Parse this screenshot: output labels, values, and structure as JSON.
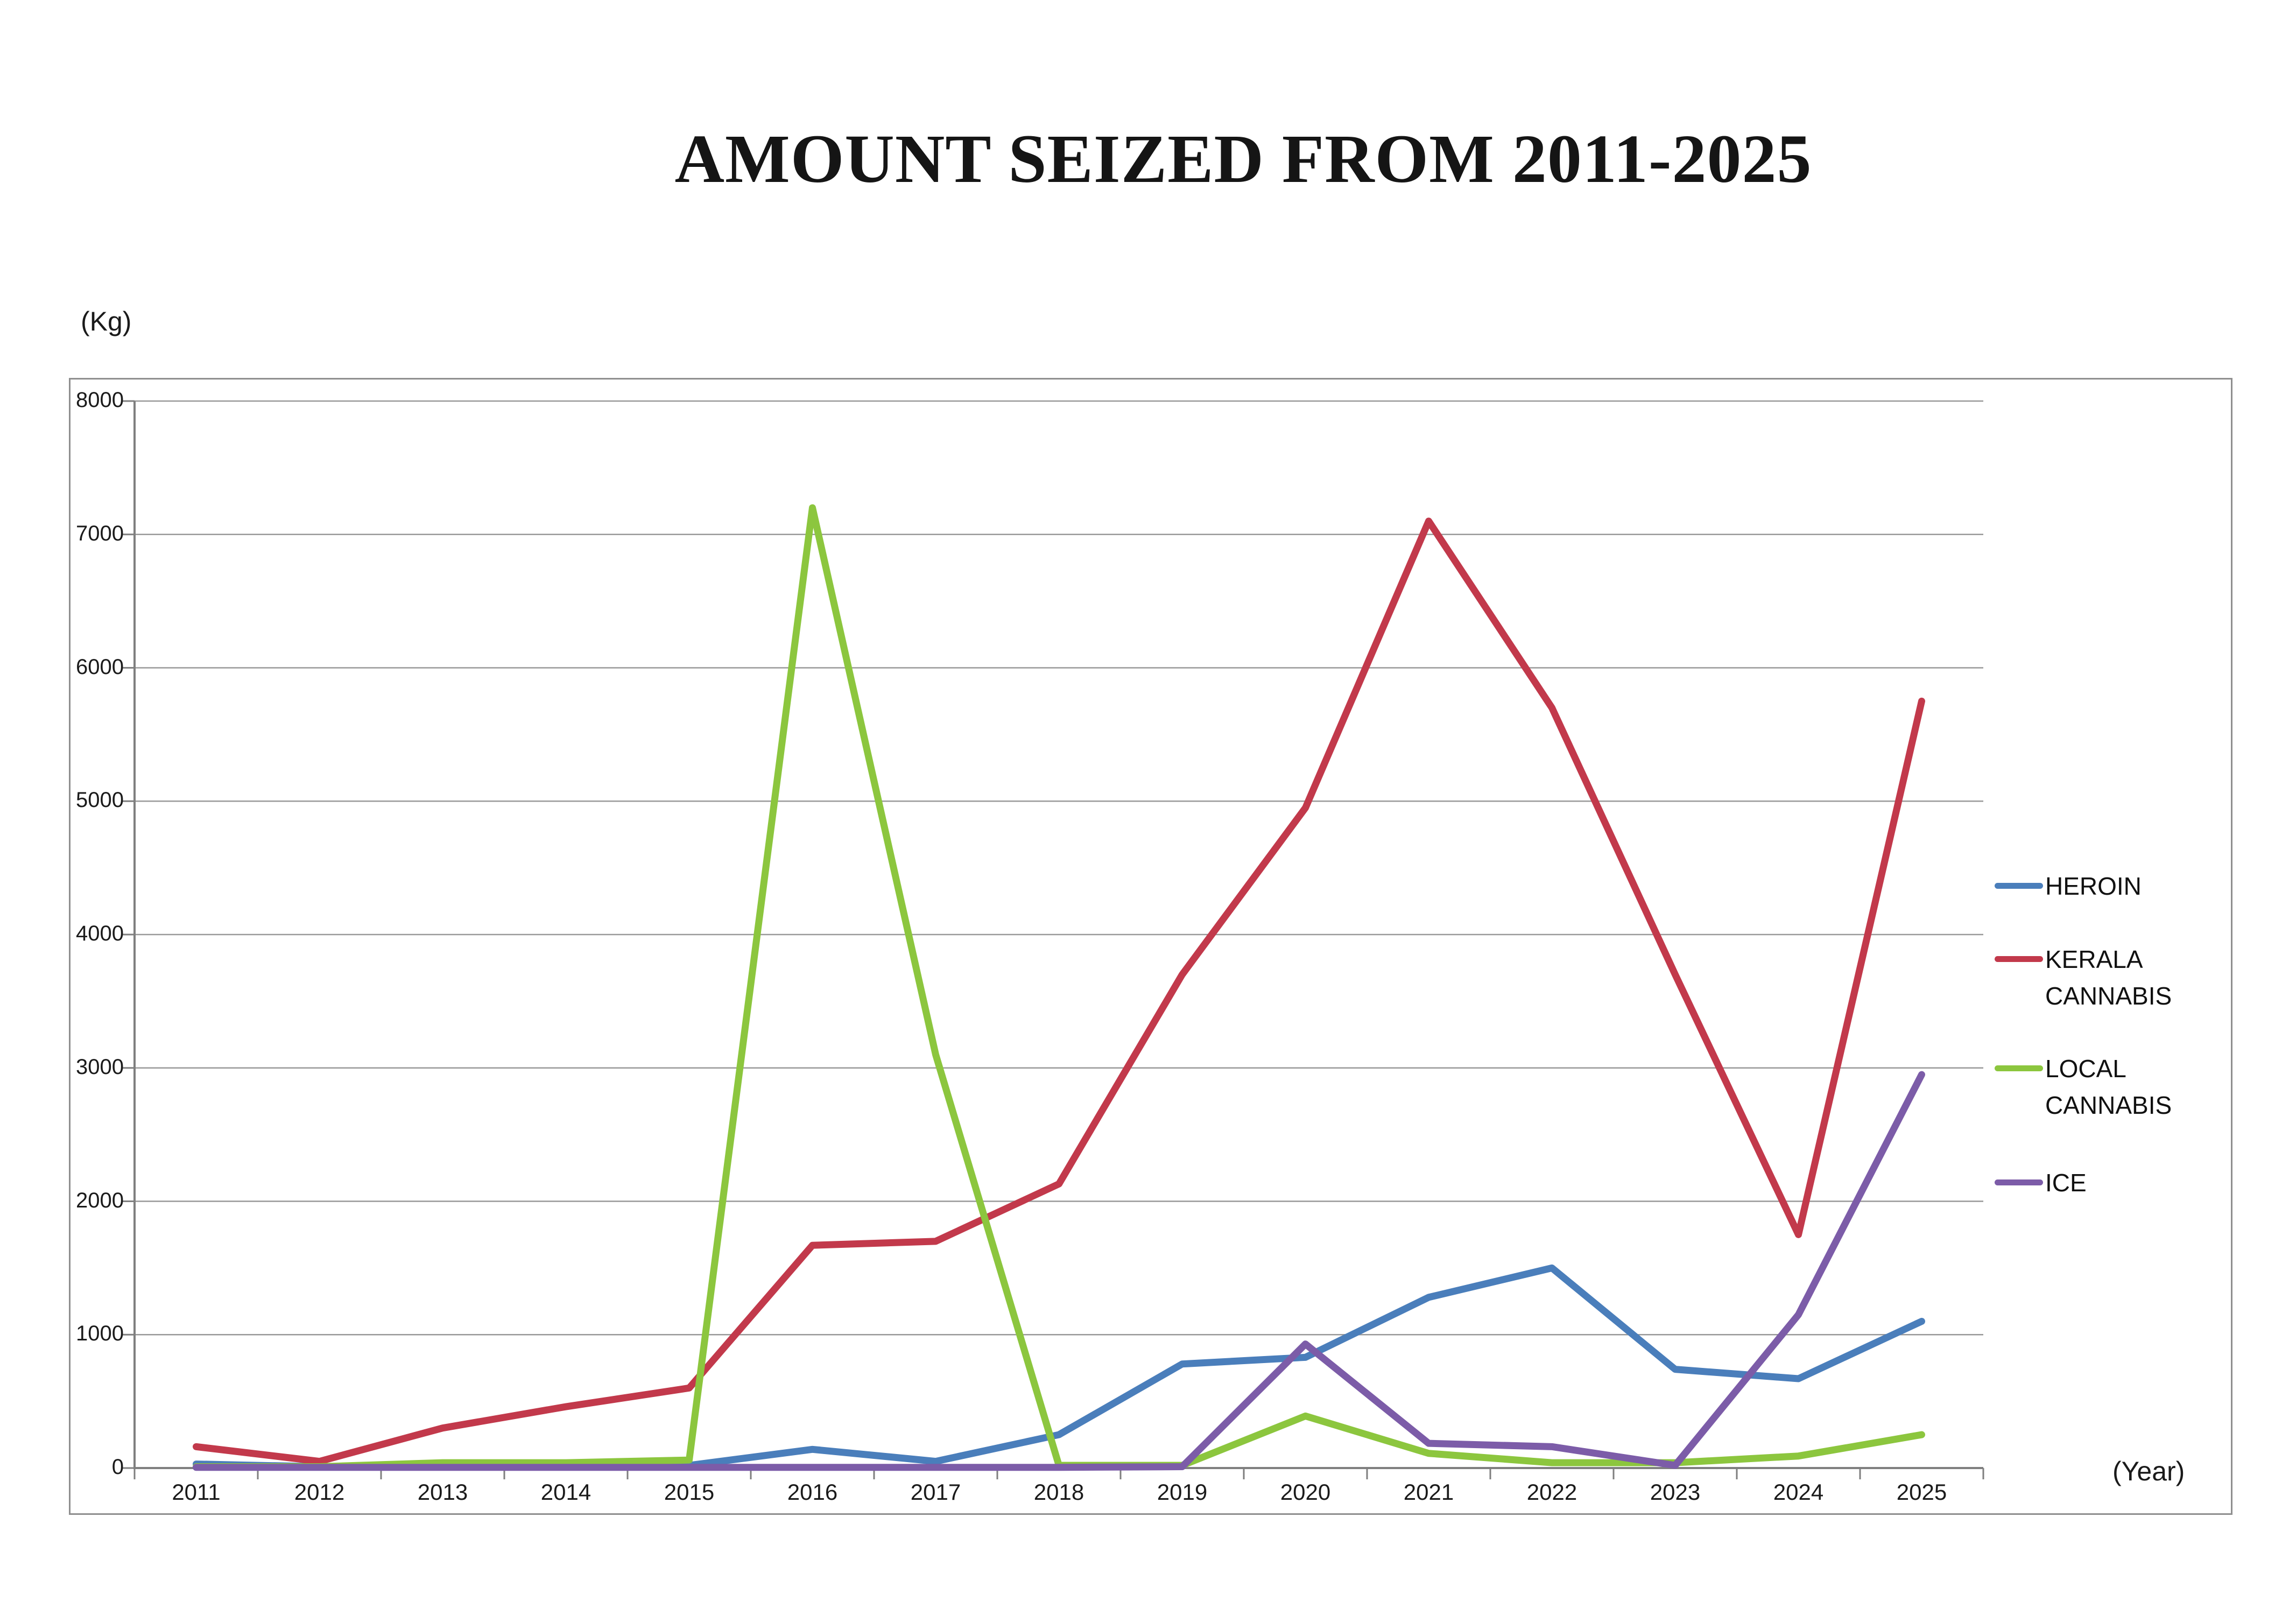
{
  "title": "AMOUNT SEIZED FROM 2011-2025",
  "kg_label": "(Kg)",
  "year_label": "(Year)",
  "chart_data": {
    "type": "line",
    "title": "AMOUNT SEIZED FROM 2011-2025",
    "xlabel": "(Year)",
    "ylabel": "(Kg)",
    "ylim": [
      0,
      8000
    ],
    "ytick_interval": 1000,
    "grid": "horizontal",
    "legend_position": "right",
    "categories": [
      "2011",
      "2012",
      "2013",
      "2014",
      "2015",
      "2016",
      "2017",
      "2018",
      "2019",
      "2020",
      "2021",
      "2022",
      "2023",
      "2024",
      "2025"
    ],
    "series": [
      {
        "name": "HEROIN",
        "color": "#4A7EBB",
        "values": [
          30,
          10,
          10,
          10,
          20,
          140,
          50,
          250,
          780,
          830,
          1280,
          1500,
          740,
          670,
          1100
        ]
      },
      {
        "name": "KERALA CANNABIS",
        "color": "#C2394B",
        "values": [
          160,
          50,
          300,
          460,
          600,
          1670,
          1700,
          2130,
          3700,
          4950,
          7100,
          5700,
          3700,
          1750,
          5750
        ]
      },
      {
        "name": "LOCAL CANNABIS",
        "color": "#8CC63E",
        "values": [
          10,
          10,
          40,
          40,
          60,
          7200,
          3100,
          20,
          20,
          390,
          110,
          40,
          40,
          90,
          250
        ]
      },
      {
        "name": "ICE",
        "color": "#7C5CA8",
        "values": [
          5,
          5,
          5,
          5,
          5,
          5,
          5,
          5,
          10,
          930,
          185,
          160,
          20,
          1150,
          2950
        ]
      }
    ]
  },
  "axis_colors": {
    "gridline": "#999999",
    "axis_line": "#7f7f7f"
  }
}
